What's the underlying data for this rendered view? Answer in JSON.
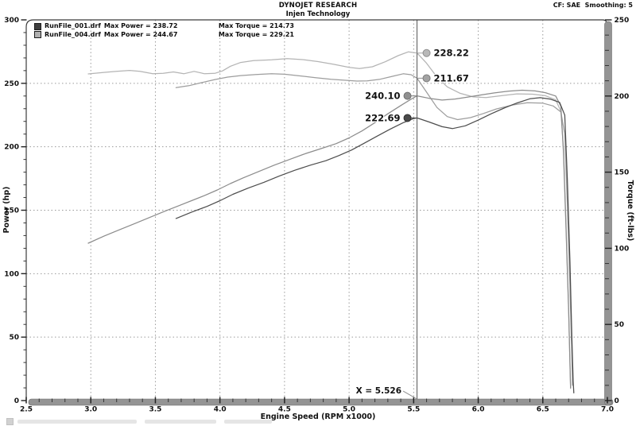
{
  "header": {
    "brand": "DYNOJET RESEARCH",
    "subtitle": "Injen Technology",
    "cf_note": "CF: SAE  Smoothing: 5"
  },
  "legend": [
    {
      "file": "RunFile_001.drf",
      "power": "Max Power = 238.72",
      "torque": "Max Torque = 214.73",
      "color": "#3f3f3f"
    },
    {
      "file": "RunFile_004.drf",
      "power": "Max Power = 244.67",
      "torque": "Max Torque = 229.21",
      "color": "#b0b0b0"
    }
  ],
  "chart_data": {
    "type": "line",
    "title": "DYNOJET RESEARCH - Injen Technology",
    "x_axis": {
      "label": "Engine Speed (RPM x1000)",
      "range": [
        2.5,
        7.0
      ],
      "ticks": [
        2.5,
        3.0,
        3.5,
        4.0,
        4.5,
        5.0,
        5.5,
        6.0,
        6.5,
        7.0
      ],
      "minor_step": 0.1
    },
    "y_left": {
      "label": "Power (hp)",
      "range": [
        0,
        300
      ],
      "ticks": [
        0,
        50,
        100,
        150,
        200,
        250,
        300
      ],
      "minor_step": 10
    },
    "y_right": {
      "label": "Torque (ft-lbs)",
      "range": [
        0,
        250
      ],
      "ticks": [
        0,
        50,
        100,
        150,
        200,
        250
      ],
      "minor_step": 10
    },
    "grid": {
      "v_rpm": [
        3.0,
        3.5,
        4.0,
        4.5,
        5.0,
        5.5,
        6.0,
        6.5
      ],
      "h_power": [
        50,
        100,
        150,
        200,
        250
      ]
    },
    "cursor": {
      "x": 5.526,
      "label": "X = 5.526"
    },
    "series": [
      {
        "id": "torque-run004",
        "run": "RunFile_004.drf",
        "measure": "torque",
        "axis": "torque",
        "color": "#b4b4b4",
        "marker_fill": "#b8b8b8",
        "marker_stroke": "#8f8f8f",
        "cursor_value": 228.22,
        "cursor_label": "228.22",
        "label_side": "right",
        "max_value": 229.21,
        "points": [
          [
            2.98,
            214.5
          ],
          [
            3.1,
            215.5
          ],
          [
            3.2,
            216.2
          ],
          [
            3.3,
            216.8
          ],
          [
            3.38,
            216.2
          ],
          [
            3.48,
            214.6
          ],
          [
            3.56,
            214.9
          ],
          [
            3.64,
            215.8
          ],
          [
            3.72,
            214.6
          ],
          [
            3.8,
            216.2
          ],
          [
            3.88,
            214.6
          ],
          [
            3.96,
            214.9
          ],
          [
            4.02,
            216.5
          ],
          [
            4.08,
            219.5
          ],
          [
            4.16,
            222.0
          ],
          [
            4.26,
            223.2
          ],
          [
            4.4,
            223.8
          ],
          [
            4.52,
            224.6
          ],
          [
            4.64,
            223.9
          ],
          [
            4.76,
            222.6
          ],
          [
            4.88,
            220.8
          ],
          [
            5.0,
            218.8
          ],
          [
            5.08,
            218.0
          ],
          [
            5.18,
            219.2
          ],
          [
            5.28,
            222.5
          ],
          [
            5.38,
            226.5
          ],
          [
            5.46,
            229.0
          ],
          [
            5.526,
            228.22
          ],
          [
            5.6,
            221.5
          ],
          [
            5.68,
            212.5
          ],
          [
            5.76,
            206.0
          ],
          [
            5.86,
            201.8
          ],
          [
            5.96,
            199.4
          ],
          [
            6.06,
            199.0
          ],
          [
            6.18,
            200.2
          ],
          [
            6.3,
            201.4
          ],
          [
            6.42,
            201.2
          ],
          [
            6.52,
            200.2
          ],
          [
            6.6,
            197.5
          ],
          [
            6.64,
            190
          ],
          [
            6.66,
            165
          ],
          [
            6.68,
            115
          ],
          [
            6.7,
            60
          ],
          [
            6.71,
            25
          ],
          [
            6.715,
            8
          ]
        ]
      },
      {
        "id": "torque-run001",
        "run": "RunFile_001.drf",
        "measure": "torque",
        "axis": "torque",
        "color": "#9d9d9d",
        "marker_fill": "#a3a3a3",
        "marker_stroke": "#7e7e7e",
        "cursor_value": 211.67,
        "cursor_label": "211.67",
        "label_side": "right",
        "max_value": 214.73,
        "points": [
          [
            3.66,
            205.5
          ],
          [
            3.76,
            206.8
          ],
          [
            3.86,
            208.8
          ],
          [
            3.96,
            210.8
          ],
          [
            4.06,
            212.4
          ],
          [
            4.16,
            213.4
          ],
          [
            4.28,
            214.1
          ],
          [
            4.4,
            214.6
          ],
          [
            4.5,
            214.3
          ],
          [
            4.62,
            213.2
          ],
          [
            4.74,
            212.0
          ],
          [
            4.86,
            211.0
          ],
          [
            4.96,
            210.4
          ],
          [
            5.06,
            209.8
          ],
          [
            5.14,
            209.9
          ],
          [
            5.24,
            211.0
          ],
          [
            5.34,
            213.0
          ],
          [
            5.42,
            214.6
          ],
          [
            5.48,
            214.0
          ],
          [
            5.526,
            211.67
          ],
          [
            5.6,
            202.5
          ],
          [
            5.68,
            192.5
          ],
          [
            5.76,
            186.5
          ],
          [
            5.84,
            184.5
          ],
          [
            5.94,
            185.8
          ],
          [
            6.04,
            188.5
          ],
          [
            6.14,
            191.5
          ],
          [
            6.26,
            194.0
          ],
          [
            6.38,
            195.6
          ],
          [
            6.5,
            195.3
          ],
          [
            6.58,
            193.5
          ],
          [
            6.64,
            189.5
          ],
          [
            6.67,
            175
          ],
          [
            6.69,
            130
          ],
          [
            6.71,
            75
          ],
          [
            6.725,
            30
          ],
          [
            6.73,
            10
          ]
        ]
      },
      {
        "id": "power-run004",
        "run": "RunFile_004.drf",
        "measure": "power",
        "axis": "power",
        "color": "#8c8c8c",
        "marker_fill": "#909090",
        "marker_stroke": "#6f6f6f",
        "cursor_value": 240.1,
        "cursor_label": "240.10",
        "label_side": "left",
        "max_value": 244.67,
        "points": [
          [
            2.98,
            124
          ],
          [
            3.1,
            129.5
          ],
          [
            3.22,
            134.5
          ],
          [
            3.34,
            139.5
          ],
          [
            3.46,
            144.5
          ],
          [
            3.58,
            149.5
          ],
          [
            3.68,
            153.5
          ],
          [
            3.78,
            157.5
          ],
          [
            3.88,
            161.5
          ],
          [
            3.98,
            166
          ],
          [
            4.08,
            171
          ],
          [
            4.18,
            175.5
          ],
          [
            4.3,
            180.5
          ],
          [
            4.42,
            185.5
          ],
          [
            4.54,
            190
          ],
          [
            4.66,
            194.5
          ],
          [
            4.78,
            198.5
          ],
          [
            4.9,
            202.5
          ],
          [
            5.0,
            207
          ],
          [
            5.1,
            212.5
          ],
          [
            5.2,
            219
          ],
          [
            5.3,
            226
          ],
          [
            5.4,
            232.5
          ],
          [
            5.48,
            237.5
          ],
          [
            5.526,
            240.1
          ],
          [
            5.62,
            238.2
          ],
          [
            5.72,
            236.8
          ],
          [
            5.82,
            237.6
          ],
          [
            5.92,
            239.2
          ],
          [
            6.02,
            240.8
          ],
          [
            6.12,
            242.4
          ],
          [
            6.24,
            243.9
          ],
          [
            6.34,
            244.6
          ],
          [
            6.44,
            244.0
          ],
          [
            6.52,
            242.6
          ],
          [
            6.6,
            240.0
          ],
          [
            6.64,
            232
          ],
          [
            6.66,
            195
          ],
          [
            6.68,
            135
          ],
          [
            6.7,
            70
          ],
          [
            6.71,
            30
          ],
          [
            6.715,
            10
          ]
        ]
      },
      {
        "id": "power-run001",
        "run": "RunFile_001.drf",
        "measure": "power",
        "axis": "power",
        "color": "#4d4d4d",
        "marker_fill": "#4a4a4a",
        "marker_stroke": "#2e2e2e",
        "cursor_value": 222.69,
        "cursor_label": "222.69",
        "label_side": "left",
        "max_value": 238.72,
        "points": [
          [
            3.66,
            143.5
          ],
          [
            3.78,
            148.5
          ],
          [
            3.9,
            153
          ],
          [
            4.0,
            157.5
          ],
          [
            4.1,
            162.5
          ],
          [
            4.22,
            167.5
          ],
          [
            4.34,
            172
          ],
          [
            4.46,
            177
          ],
          [
            4.58,
            181.5
          ],
          [
            4.7,
            185.5
          ],
          [
            4.82,
            189
          ],
          [
            4.92,
            193
          ],
          [
            5.02,
            197.5
          ],
          [
            5.12,
            203
          ],
          [
            5.22,
            208.5
          ],
          [
            5.32,
            214
          ],
          [
            5.42,
            219
          ],
          [
            5.5,
            222.2
          ],
          [
            5.526,
            222.69
          ],
          [
            5.62,
            219.5
          ],
          [
            5.72,
            215.8
          ],
          [
            5.8,
            214.3
          ],
          [
            5.9,
            216.5
          ],
          [
            6.0,
            221
          ],
          [
            6.1,
            226
          ],
          [
            6.2,
            230.5
          ],
          [
            6.3,
            234.5
          ],
          [
            6.4,
            237.8
          ],
          [
            6.48,
            238.7
          ],
          [
            6.56,
            237.5
          ],
          [
            6.63,
            235
          ],
          [
            6.67,
            225
          ],
          [
            6.69,
            175
          ],
          [
            6.71,
            110
          ],
          [
            6.725,
            50
          ],
          [
            6.735,
            15
          ],
          [
            6.74,
            6
          ]
        ]
      }
    ]
  }
}
